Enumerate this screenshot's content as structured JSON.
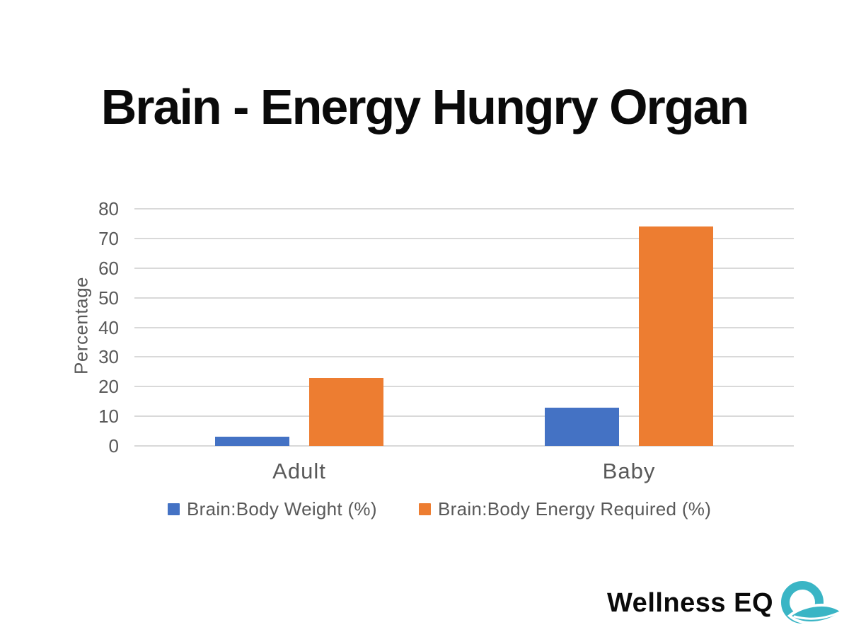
{
  "title": "Brain - Energy Hungry Organ",
  "footer": {
    "brand": "Wellness EQ",
    "logo_icon": "q-leaf-logo",
    "logo_color": "#3ab5c5"
  },
  "colors": {
    "series_blue": "#4472c4",
    "series_orange": "#ed7d31",
    "axis_text": "#595959",
    "gridline": "#d9d9d9",
    "title_text": "#0a0a0a",
    "background": "#ffffff"
  },
  "chart_data": {
    "type": "bar",
    "title": "Brain - Energy Hungry Organ",
    "categories": [
      "Adult",
      "Baby"
    ],
    "series": [
      {
        "name": "Brain:Body Weight (%)",
        "color": "#4472c4",
        "values": [
          3,
          13
        ]
      },
      {
        "name": "Brain:Body Energy Required (%)",
        "color": "#ed7d31",
        "values": [
          23,
          74
        ]
      }
    ],
    "xlabel": "",
    "ylabel": "Percentage",
    "ylim": [
      0,
      80
    ],
    "yticks": [
      0,
      10,
      20,
      30,
      40,
      50,
      60,
      70,
      80
    ],
    "grid": true,
    "legend_position": "bottom"
  }
}
